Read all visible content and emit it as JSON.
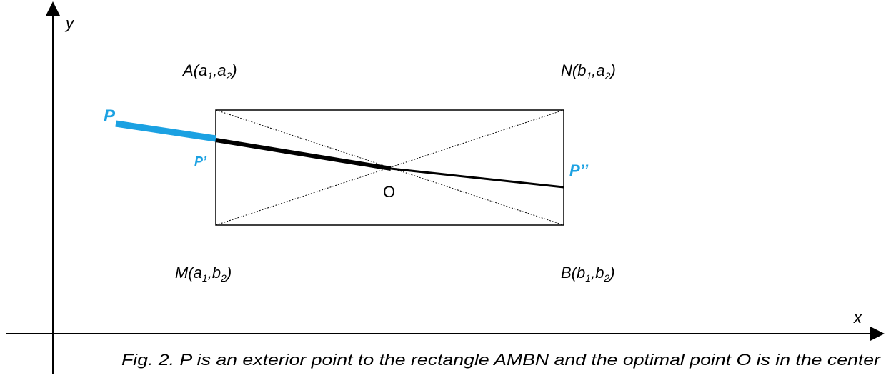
{
  "axes": {
    "x_label": "x",
    "y_label": "y"
  },
  "vertices": {
    "A": {
      "name": "A",
      "open": "(",
      "c1": "a",
      "s1": "1",
      "sep": ",",
      "c2": "a",
      "s2": "2",
      "close": ")"
    },
    "N": {
      "name": "N",
      "open": "(",
      "c1": "b",
      "s1": "1",
      "sep": ",",
      "c2": "a",
      "s2": "2",
      "close": ")"
    },
    "M": {
      "name": "M",
      "open": "(",
      "c1": "a",
      "s1": "1",
      "sep": ",",
      "c2": "b",
      "s2": "2",
      "close": ")"
    },
    "B": {
      "name": "B",
      "open": "(",
      "c1": "b",
      "s1": "1",
      "sep": ",",
      "c2": "b",
      "s2": "2",
      "close": ")"
    }
  },
  "points": {
    "P": "P",
    "P_prime": "P’",
    "P_double_prime": "P’’",
    "O": "O"
  },
  "caption": "Fig. 2. P is an exterior point to the rectangle AMBN and the optimal point O is in the center",
  "colors": {
    "highlight": "#1ba1e2",
    "ink": "#000000"
  }
}
